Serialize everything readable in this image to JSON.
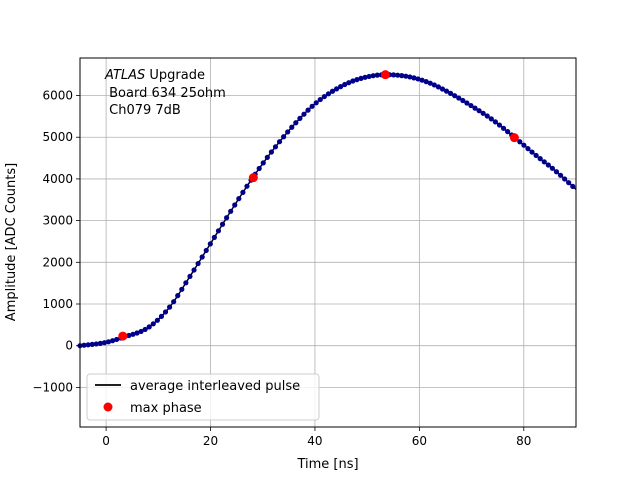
{
  "chart_data": {
    "type": "scatter",
    "xlabel": "Time [ns]",
    "ylabel": "Amplitude [ADC Counts]",
    "xlim": [
      -5,
      90
    ],
    "ylim": [
      -1950,
      6900
    ],
    "x_ticks": [
      0,
      20,
      40,
      60,
      80
    ],
    "y_ticks": [
      -1000,
      0,
      1000,
      2000,
      3000,
      4000,
      5000,
      6000
    ],
    "grid": true,
    "annotation": {
      "italic_part": "ATLAS",
      "line1_rest": " Upgrade",
      "line2": " Board 634 25ohm",
      "line3": " Ch079 7dB"
    },
    "legend": {
      "placement": "lower-left",
      "entries": [
        {
          "label": "average interleaved pulse",
          "color": "#000000",
          "marker": "line"
        },
        {
          "label": "max phase",
          "color": "#ff0000",
          "marker": "circle"
        }
      ]
    },
    "pulse_curve": {
      "name": "average interleaved pulse",
      "color": "#000000",
      "point_color": "#00008b",
      "x": [
        -5,
        0,
        3.2,
        8,
        12,
        16,
        20,
        24,
        28.2,
        32,
        36,
        40,
        44,
        48,
        53.5,
        58,
        62,
        66,
        70,
        74,
        78.2,
        82,
        86,
        90
      ],
      "y": [
        0,
        80,
        200,
        430,
        900,
        1650,
        2450,
        3250,
        4050,
        4700,
        5300,
        5800,
        6150,
        6380,
        6500,
        6450,
        6300,
        6050,
        5750,
        5420,
        5000,
        4600,
        4200,
        3750
      ]
    },
    "max_phase": {
      "name": "max phase",
      "color": "#ff0000",
      "x": [
        3.2,
        28.2,
        53.5,
        78.2
      ],
      "y": [
        230,
        4030,
        6500,
        4990
      ]
    }
  }
}
